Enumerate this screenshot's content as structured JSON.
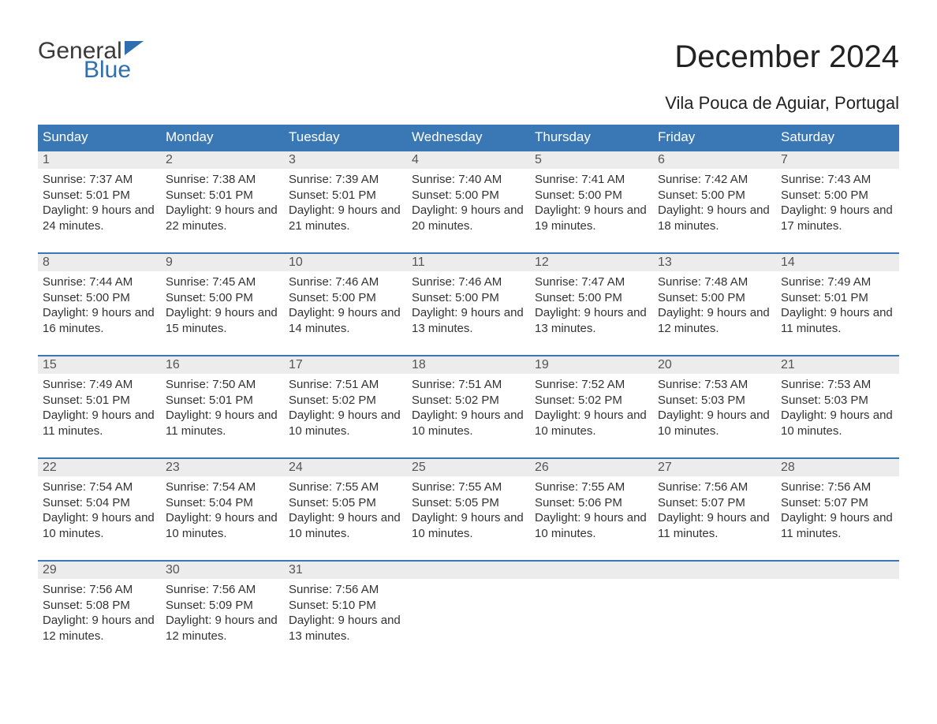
{
  "logo": {
    "text1": "General",
    "text2": "Blue",
    "flag_color": "#2f6fb0",
    "text_color": "#3a3a3a"
  },
  "title": "December 2024",
  "location": "Vila Pouca de Aguiar, Portugal",
  "colors": {
    "header_bg": "#3a78b5",
    "header_text": "#ffffff",
    "daynum_bg": "#ececec",
    "daynum_text": "#555555",
    "body_text": "#333333",
    "week_border": "#3a78b5",
    "page_bg": "#ffffff"
  },
  "fonts": {
    "title_size": 40,
    "location_size": 22,
    "header_size": 17,
    "daynum_size": 16,
    "body_size": 15
  },
  "day_columns": [
    "Sunday",
    "Monday",
    "Tuesday",
    "Wednesday",
    "Thursday",
    "Friday",
    "Saturday"
  ],
  "weeks": [
    [
      {
        "num": "1",
        "sunrise": "Sunrise: 7:37 AM",
        "sunset": "Sunset: 5:01 PM",
        "daylight": "Daylight: 9 hours and 24 minutes."
      },
      {
        "num": "2",
        "sunrise": "Sunrise: 7:38 AM",
        "sunset": "Sunset: 5:01 PM",
        "daylight": "Daylight: 9 hours and 22 minutes."
      },
      {
        "num": "3",
        "sunrise": "Sunrise: 7:39 AM",
        "sunset": "Sunset: 5:01 PM",
        "daylight": "Daylight: 9 hours and 21 minutes."
      },
      {
        "num": "4",
        "sunrise": "Sunrise: 7:40 AM",
        "sunset": "Sunset: 5:00 PM",
        "daylight": "Daylight: 9 hours and 20 minutes."
      },
      {
        "num": "5",
        "sunrise": "Sunrise: 7:41 AM",
        "sunset": "Sunset: 5:00 PM",
        "daylight": "Daylight: 9 hours and 19 minutes."
      },
      {
        "num": "6",
        "sunrise": "Sunrise: 7:42 AM",
        "sunset": "Sunset: 5:00 PM",
        "daylight": "Daylight: 9 hours and 18 minutes."
      },
      {
        "num": "7",
        "sunrise": "Sunrise: 7:43 AM",
        "sunset": "Sunset: 5:00 PM",
        "daylight": "Daylight: 9 hours and 17 minutes."
      }
    ],
    [
      {
        "num": "8",
        "sunrise": "Sunrise: 7:44 AM",
        "sunset": "Sunset: 5:00 PM",
        "daylight": "Daylight: 9 hours and 16 minutes."
      },
      {
        "num": "9",
        "sunrise": "Sunrise: 7:45 AM",
        "sunset": "Sunset: 5:00 PM",
        "daylight": "Daylight: 9 hours and 15 minutes."
      },
      {
        "num": "10",
        "sunrise": "Sunrise: 7:46 AM",
        "sunset": "Sunset: 5:00 PM",
        "daylight": "Daylight: 9 hours and 14 minutes."
      },
      {
        "num": "11",
        "sunrise": "Sunrise: 7:46 AM",
        "sunset": "Sunset: 5:00 PM",
        "daylight": "Daylight: 9 hours and 13 minutes."
      },
      {
        "num": "12",
        "sunrise": "Sunrise: 7:47 AM",
        "sunset": "Sunset: 5:00 PM",
        "daylight": "Daylight: 9 hours and 13 minutes."
      },
      {
        "num": "13",
        "sunrise": "Sunrise: 7:48 AM",
        "sunset": "Sunset: 5:00 PM",
        "daylight": "Daylight: 9 hours and 12 minutes."
      },
      {
        "num": "14",
        "sunrise": "Sunrise: 7:49 AM",
        "sunset": "Sunset: 5:01 PM",
        "daylight": "Daylight: 9 hours and 11 minutes."
      }
    ],
    [
      {
        "num": "15",
        "sunrise": "Sunrise: 7:49 AM",
        "sunset": "Sunset: 5:01 PM",
        "daylight": "Daylight: 9 hours and 11 minutes."
      },
      {
        "num": "16",
        "sunrise": "Sunrise: 7:50 AM",
        "sunset": "Sunset: 5:01 PM",
        "daylight": "Daylight: 9 hours and 11 minutes."
      },
      {
        "num": "17",
        "sunrise": "Sunrise: 7:51 AM",
        "sunset": "Sunset: 5:02 PM",
        "daylight": "Daylight: 9 hours and 10 minutes."
      },
      {
        "num": "18",
        "sunrise": "Sunrise: 7:51 AM",
        "sunset": "Sunset: 5:02 PM",
        "daylight": "Daylight: 9 hours and 10 minutes."
      },
      {
        "num": "19",
        "sunrise": "Sunrise: 7:52 AM",
        "sunset": "Sunset: 5:02 PM",
        "daylight": "Daylight: 9 hours and 10 minutes."
      },
      {
        "num": "20",
        "sunrise": "Sunrise: 7:53 AM",
        "sunset": "Sunset: 5:03 PM",
        "daylight": "Daylight: 9 hours and 10 minutes."
      },
      {
        "num": "21",
        "sunrise": "Sunrise: 7:53 AM",
        "sunset": "Sunset: 5:03 PM",
        "daylight": "Daylight: 9 hours and 10 minutes."
      }
    ],
    [
      {
        "num": "22",
        "sunrise": "Sunrise: 7:54 AM",
        "sunset": "Sunset: 5:04 PM",
        "daylight": "Daylight: 9 hours and 10 minutes."
      },
      {
        "num": "23",
        "sunrise": "Sunrise: 7:54 AM",
        "sunset": "Sunset: 5:04 PM",
        "daylight": "Daylight: 9 hours and 10 minutes."
      },
      {
        "num": "24",
        "sunrise": "Sunrise: 7:55 AM",
        "sunset": "Sunset: 5:05 PM",
        "daylight": "Daylight: 9 hours and 10 minutes."
      },
      {
        "num": "25",
        "sunrise": "Sunrise: 7:55 AM",
        "sunset": "Sunset: 5:05 PM",
        "daylight": "Daylight: 9 hours and 10 minutes."
      },
      {
        "num": "26",
        "sunrise": "Sunrise: 7:55 AM",
        "sunset": "Sunset: 5:06 PM",
        "daylight": "Daylight: 9 hours and 10 minutes."
      },
      {
        "num": "27",
        "sunrise": "Sunrise: 7:56 AM",
        "sunset": "Sunset: 5:07 PM",
        "daylight": "Daylight: 9 hours and 11 minutes."
      },
      {
        "num": "28",
        "sunrise": "Sunrise: 7:56 AM",
        "sunset": "Sunset: 5:07 PM",
        "daylight": "Daylight: 9 hours and 11 minutes."
      }
    ],
    [
      {
        "num": "29",
        "sunrise": "Sunrise: 7:56 AM",
        "sunset": "Sunset: 5:08 PM",
        "daylight": "Daylight: 9 hours and 12 minutes."
      },
      {
        "num": "30",
        "sunrise": "Sunrise: 7:56 AM",
        "sunset": "Sunset: 5:09 PM",
        "daylight": "Daylight: 9 hours and 12 minutes."
      },
      {
        "num": "31",
        "sunrise": "Sunrise: 7:56 AM",
        "sunset": "Sunset: 5:10 PM",
        "daylight": "Daylight: 9 hours and 13 minutes."
      },
      null,
      null,
      null,
      null
    ]
  ]
}
